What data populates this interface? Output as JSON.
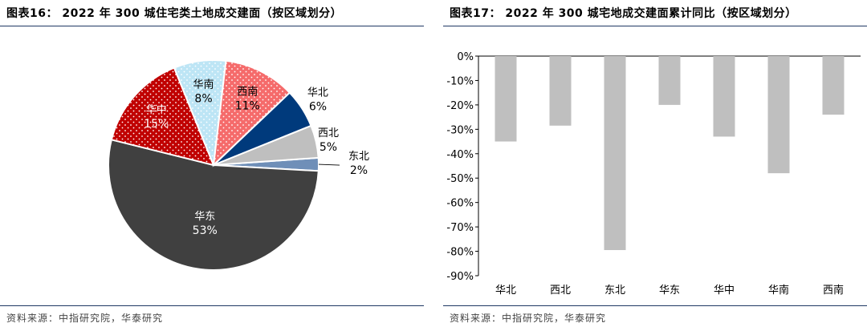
{
  "left": {
    "title": "图表16： 2022 年 300 城住宅类土地成交建面（按区域划分）",
    "source": "资料来源：中指研究院，华泰研究"
  },
  "right": {
    "title": "图表17： 2022 年 300 城宅地成交建面累计同比（按区域划分）",
    "source": "资料来源：中指研究院，华泰研究"
  },
  "chart_data": [
    {
      "type": "pie",
      "title": "",
      "slices": [
        {
          "label": "华东",
          "value": 53,
          "value_label": "53%",
          "color": "#404040"
        },
        {
          "label": "华中",
          "value": 15,
          "value_label": "15%",
          "color": "#c00000"
        },
        {
          "label": "华南",
          "value": 8,
          "value_label": "8%",
          "color": "#bde5f5"
        },
        {
          "label": "西南",
          "value": 11,
          "value_label": "11%",
          "color": "#f56b6b"
        },
        {
          "label": "华北",
          "value": 6,
          "value_label": "6%",
          "color": "#003a7c"
        },
        {
          "label": "西北",
          "value": 5,
          "value_label": "5%",
          "color": "#bfbfbf"
        },
        {
          "label": "东北",
          "value": 2,
          "value_label": "2%",
          "color": "#6f8fb8"
        }
      ]
    },
    {
      "type": "bar",
      "title": "",
      "categories": [
        "华北",
        "西北",
        "东北",
        "华东",
        "华中",
        "华南",
        "西南"
      ],
      "values": [
        -35,
        -28.5,
        -79.5,
        -20,
        -33,
        -48,
        -24
      ],
      "ylim": [
        -90,
        0
      ],
      "yticks": [
        0,
        -10,
        -20,
        -30,
        -40,
        -50,
        -60,
        -70,
        -80,
        -90
      ],
      "ytick_labels": [
        "0%",
        "-10%",
        "-20%",
        "-30%",
        "-40%",
        "-50%",
        "-60%",
        "-70%",
        "-80%",
        "-90%"
      ],
      "bar_color": "#bfbfbf",
      "grid": false
    }
  ]
}
